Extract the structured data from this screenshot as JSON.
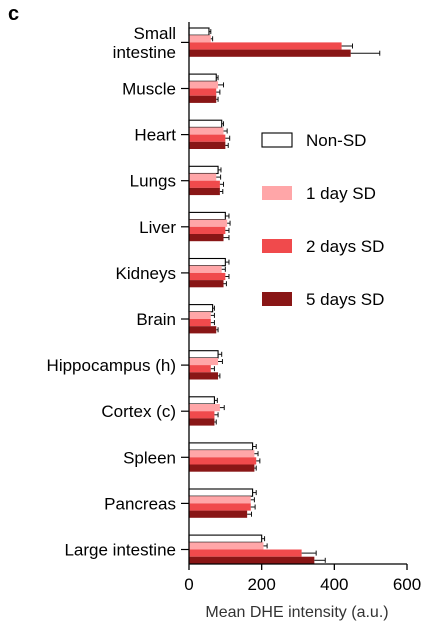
{
  "panel_label": "c",
  "chart_data": {
    "type": "bar",
    "orientation": "horizontal",
    "xlabel": "Mean DHE intensity (a.u.)",
    "xlim": [
      0,
      600
    ],
    "xticks": [
      "0",
      "200",
      "400",
      "600"
    ],
    "categories": [
      [
        "Small",
        "intestine"
      ],
      [
        "Muscle"
      ],
      [
        "Heart"
      ],
      [
        "Lungs"
      ],
      [
        "Liver"
      ],
      [
        "Kidneys"
      ],
      [
        "Brain"
      ],
      [
        "Hippocampus (h)"
      ],
      [
        "Cortex (c)"
      ],
      [
        "Spleen"
      ],
      [
        "Pancreas"
      ],
      [
        "Large intestine"
      ]
    ],
    "series": [
      {
        "name": "Non-SD",
        "color": "#ffffff",
        "values": [
          55,
          75,
          90,
          80,
          100,
          100,
          65,
          80,
          70,
          175,
          175,
          200
        ],
        "errors": [
          5,
          5,
          5,
          8,
          10,
          10,
          5,
          10,
          8,
          10,
          10,
          8
        ]
      },
      {
        "name": "1 day SD",
        "color": "#ffa6a8",
        "values": [
          60,
          80,
          95,
          75,
          105,
          90,
          60,
          80,
          85,
          180,
          170,
          205
        ],
        "errors": [
          5,
          15,
          10,
          12,
          8,
          10,
          10,
          12,
          12,
          10,
          10,
          10
        ]
      },
      {
        "name": "2 days SD",
        "color": "#f04a4c",
        "values": [
          420,
          75,
          100,
          85,
          100,
          100,
          60,
          60,
          70,
          185,
          170,
          310
        ],
        "errors": [
          30,
          10,
          12,
          10,
          10,
          10,
          10,
          10,
          10,
          10,
          12,
          40
        ]
      },
      {
        "name": "5 days SD",
        "color": "#891616",
        "values": [
          445,
          75,
          100,
          85,
          95,
          95,
          75,
          80,
          70,
          180,
          160,
          345
        ],
        "errors": [
          80,
          5,
          8,
          8,
          15,
          8,
          5,
          5,
          5,
          5,
          12,
          30
        ]
      }
    ],
    "legend_position": "right"
  }
}
